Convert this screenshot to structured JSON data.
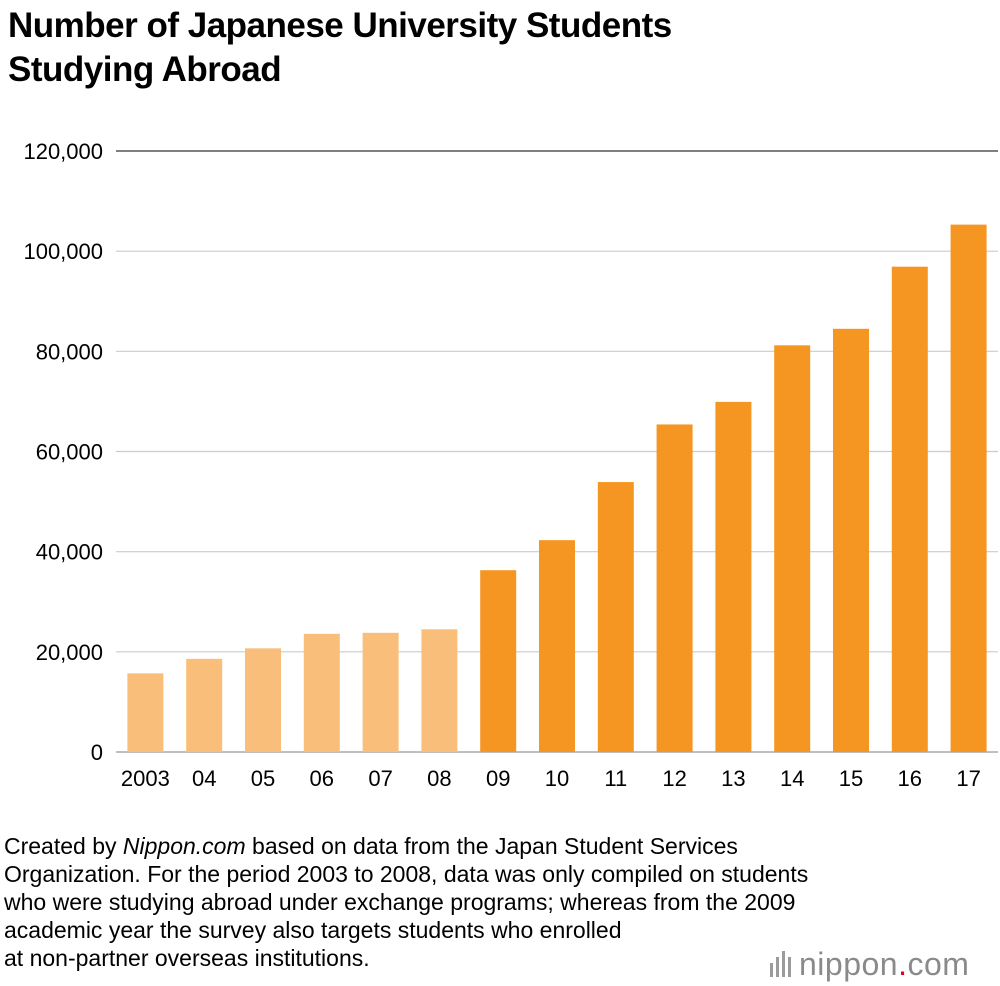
{
  "title_lines": [
    "Number of Japanese University Students",
    "Studying Abroad"
  ],
  "note": {
    "prefix": "Created by ",
    "source_name": "Nippon.com",
    "line1_rest": " based on data from the Japan Student Services",
    "lines": [
      "Organization. For the period 2003 to 2008, data was only compiled on students",
      "who were studying abroad under exchange programs; whereas from the 2009",
      "academic year the survey also targets students who enrolled",
      "at non-partner overseas institutions."
    ]
  },
  "logo": {
    "name": "nippon",
    "dot": ".",
    "suffix": "com"
  },
  "colors": {
    "exchange_bar": "#f9bf7a",
    "all_bar": "#f59623",
    "grid": "#cccccc",
    "top_grid": "#555555"
  },
  "chart_data": {
    "type": "bar",
    "title": "Number of Japanese University Students Studying Abroad",
    "categories": [
      "2003",
      "04",
      "05",
      "06",
      "07",
      "08",
      "09",
      "10",
      "11",
      "12",
      "13",
      "14",
      "15",
      "16",
      "17"
    ],
    "values": [
      15700,
      18600,
      20700,
      23600,
      23800,
      24500,
      36300,
      42300,
      53900,
      65400,
      69900,
      81200,
      84500,
      96900,
      105300
    ],
    "ylim": [
      0,
      120000
    ],
    "yticks": [
      0,
      20000,
      40000,
      60000,
      80000,
      100000,
      120000
    ],
    "ytick_labels": [
      "0",
      "20,000",
      "40,000",
      "60,000",
      "80,000",
      "100,000",
      "120,000"
    ],
    "grid": true,
    "xlabel": "",
    "ylabel": ""
  }
}
